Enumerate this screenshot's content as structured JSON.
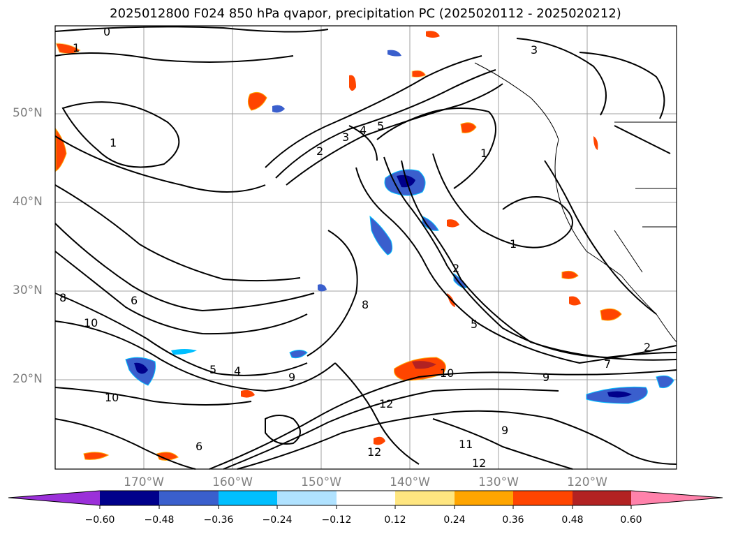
{
  "title": "2025012800 F024 850 hPa qvapor, precipitation PC (2025020112 - 2025020212)",
  "lat_labels": [
    "50°N",
    "40°N",
    "30°N",
    "20°N"
  ],
  "lon_labels": [
    "170°W",
    "160°W",
    "150°W",
    "140°W",
    "130°W",
    "120°W"
  ],
  "contour_labels": [
    "0",
    "1",
    "1",
    "1",
    "1",
    "2",
    "2",
    "2",
    "3",
    "3",
    "4",
    "4",
    "5",
    "5",
    "5",
    "6",
    "6",
    "7",
    "8",
    "8",
    "9",
    "9",
    "9",
    "10",
    "10",
    "10",
    "11",
    "12",
    "12",
    "12"
  ],
  "colorbar": {
    "ticks": [
      "−0.60",
      "−0.48",
      "−0.36",
      "−0.24",
      "−0.12",
      "0.12",
      "0.24",
      "0.36",
      "0.48",
      "0.60"
    ],
    "colors": [
      "#9b30d9",
      "#00008b",
      "#3a5fcd",
      "#00bfff",
      "#b0e2ff",
      "#ffffff",
      "#ffe680",
      "#ffa500",
      "#ff4500",
      "#b22222",
      "#ff82ab"
    ]
  },
  "colors": {
    "negative_precip": "#3a5fcd",
    "positive_precip": "#ff4500",
    "contour": "#000000",
    "grid": "#a0a0a0"
  }
}
